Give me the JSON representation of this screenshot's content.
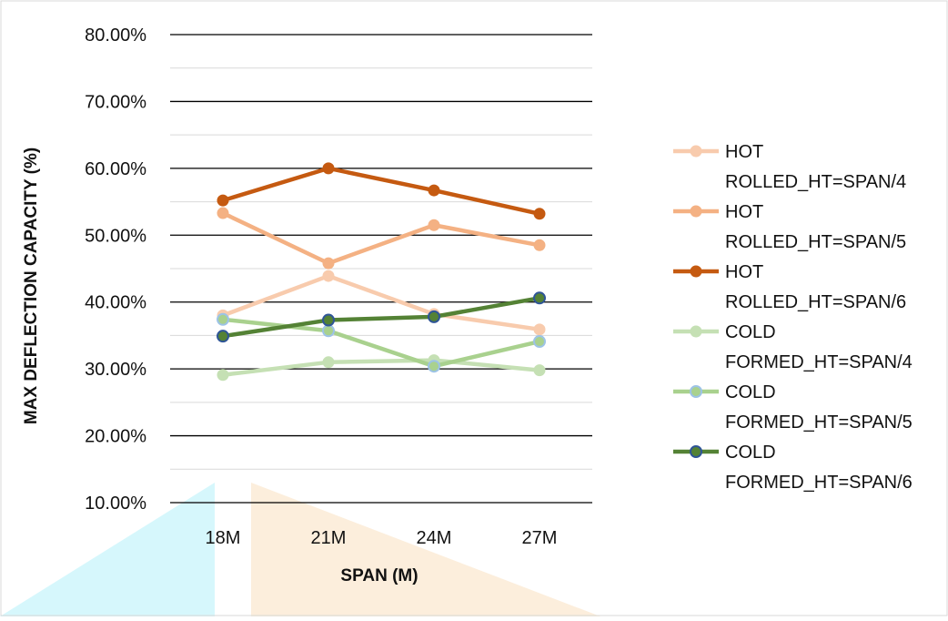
{
  "chart_data": {
    "type": "line",
    "title": "",
    "xlabel": "SPAN (M)",
    "ylabel": "MAX  DEFLECTION CAPACITY (%)",
    "categories": [
      "18M",
      "21M",
      "24M",
      "27M"
    ],
    "ylim": [
      0.1,
      0.8
    ],
    "y_ticks": [
      "10.00%",
      "20.00%",
      "30.00%",
      "40.00%",
      "50.00%",
      "60.00%",
      "70.00%",
      "80.00%"
    ],
    "grid": "major and minor horizontal",
    "legend_position": "right",
    "series": [
      {
        "name": "HOT ROLLED_HT=SPAN/4",
        "legend_lines": [
          "HOT",
          "ROLLED_HT=SPAN/4"
        ],
        "color": "#F8CBAD",
        "values": [
          0.38,
          0.439,
          0.382,
          0.359
        ]
      },
      {
        "name": "HOT ROLLED_HT=SPAN/5",
        "legend_lines": [
          "HOT",
          "ROLLED_HT=SPAN/5"
        ],
        "color": "#F4B183",
        "values": [
          0.533,
          0.458,
          0.515,
          0.485
        ]
      },
      {
        "name": "HOT ROLLED_HT=SPAN/6",
        "legend_lines": [
          "HOT",
          "ROLLED_HT=SPAN/6"
        ],
        "color": "#C55A11",
        "values": [
          0.552,
          0.6,
          0.567,
          0.532
        ]
      },
      {
        "name": "COLD FORMED_HT=SPAN/4",
        "legend_lines": [
          "COLD",
          "FORMED_HT=SPAN/4"
        ],
        "color": "#C5E0B4",
        "values": [
          0.291,
          0.31,
          0.313,
          0.298
        ]
      },
      {
        "name": "COLD FORMED_HT=SPAN/5",
        "legend_lines": [
          "COLD",
          "FORMED_HT=SPAN/5"
        ],
        "color": "#A9D18E",
        "marker_edge": "#9DC3E6",
        "values": [
          0.374,
          0.357,
          0.304,
          0.341
        ]
      },
      {
        "name": "COLD FORMED_HT=SPAN/6",
        "legend_lines": [
          "COLD",
          "FORMED_HT=SPAN/6"
        ],
        "color": "#548235",
        "marker_edge": "#2F5597",
        "values": [
          0.349,
          0.373,
          0.378,
          0.406
        ]
      }
    ]
  }
}
